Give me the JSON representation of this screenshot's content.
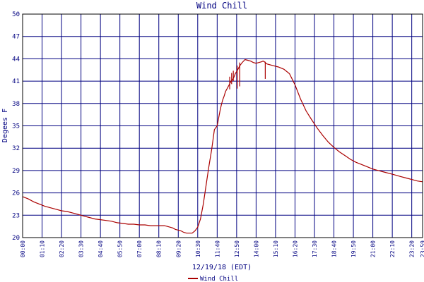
{
  "chart_data": {
    "type": "line",
    "title": "Wind Chill",
    "xlabel": "12/19/18 (EDT)",
    "ylabel": "Degees F",
    "ylim": [
      20,
      50
    ],
    "yticks": [
      20,
      23,
      26,
      29,
      32,
      35,
      38,
      41,
      44,
      47,
      50
    ],
    "ytick_labels": [
      "20",
      "23",
      "26",
      "29",
      "32",
      "35",
      "38",
      "41",
      "44",
      "47",
      "50"
    ],
    "xlim": [
      0,
      1439
    ],
    "xticks": [
      0,
      70,
      140,
      210,
      280,
      350,
      420,
      490,
      560,
      630,
      700,
      770,
      840,
      910,
      980,
      1050,
      1120,
      1190,
      1260,
      1330,
      1400,
      1439
    ],
    "xtick_labels": [
      "00:00",
      "01:10",
      "02:20",
      "03:30",
      "04:40",
      "05:50",
      "07:00",
      "08:10",
      "09:20",
      "10:30",
      "11:40",
      "12:50",
      "14:00",
      "15:10",
      "16:20",
      "17:30",
      "18:40",
      "19:50",
      "21:00",
      "22:10",
      "23:20",
      "23:59"
    ],
    "grid": true,
    "legend": "bottom-left",
    "series": [
      {
        "name": "Wind Chill",
        "color": "#aa0000",
        "x": [
          0,
          20,
          40,
          60,
          80,
          100,
          120,
          140,
          160,
          180,
          200,
          220,
          240,
          260,
          280,
          300,
          320,
          340,
          360,
          380,
          400,
          420,
          440,
          460,
          480,
          490,
          500,
          510,
          520,
          530,
          540,
          550,
          560,
          570,
          580,
          590,
          600,
          610,
          620,
          630,
          640,
          650,
          660,
          670,
          680,
          690,
          700,
          705,
          710,
          715,
          720,
          725,
          730,
          740,
          750,
          755,
          760,
          765,
          770,
          775,
          780,
          790,
          800,
          810,
          820,
          830,
          840,
          850,
          860,
          865,
          870,
          875,
          880,
          900,
          920,
          940,
          960,
          980,
          1000,
          1020,
          1040,
          1060,
          1080,
          1100,
          1120,
          1140,
          1160,
          1180,
          1200,
          1220,
          1240,
          1260,
          1280,
          1300,
          1320,
          1340,
          1360,
          1380,
          1400,
          1420,
          1439
        ],
        "values": [
          25.5,
          25.2,
          24.8,
          24.5,
          24.2,
          24.0,
          23.8,
          23.6,
          23.5,
          23.3,
          23.1,
          22.9,
          22.7,
          22.5,
          22.4,
          22.3,
          22.2,
          22.0,
          21.9,
          21.8,
          21.8,
          21.7,
          21.7,
          21.6,
          21.6,
          21.6,
          21.6,
          21.6,
          21.5,
          21.4,
          21.3,
          21.1,
          21.0,
          20.9,
          20.7,
          20.6,
          20.6,
          20.6,
          20.9,
          21.4,
          22.5,
          24.5,
          27.0,
          29.5,
          31.8,
          34.5,
          35.0,
          36.0,
          37.0,
          37.8,
          38.5,
          39.0,
          39.6,
          40.3,
          41.0,
          41.2,
          41.5,
          42.0,
          42.3,
          42.6,
          43.0,
          43.5,
          43.9,
          43.8,
          43.7,
          43.5,
          43.4,
          43.5,
          43.6,
          43.7,
          43.6,
          43.4,
          43.3,
          43.1,
          42.9,
          42.6,
          42.0,
          40.5,
          38.6,
          37.0,
          35.8,
          34.7,
          33.7,
          32.8,
          32.1,
          31.5,
          31.0,
          30.5,
          30.1,
          29.8,
          29.5,
          29.2,
          29.0,
          28.8,
          28.6,
          28.4,
          28.2,
          28.0,
          27.8,
          27.6,
          27.5
        ]
      }
    ],
    "dips": [
      {
        "x": 745,
        "from": 41.6,
        "to": 39.9
      },
      {
        "x": 752,
        "from": 42.1,
        "to": 40.6
      },
      {
        "x": 758,
        "from": 42.4,
        "to": 41.0
      },
      {
        "x": 772,
        "from": 43.1,
        "to": 40.0
      },
      {
        "x": 781,
        "from": 43.5,
        "to": 40.3
      },
      {
        "x": 873,
        "from": 43.6,
        "to": 41.3
      }
    ]
  }
}
